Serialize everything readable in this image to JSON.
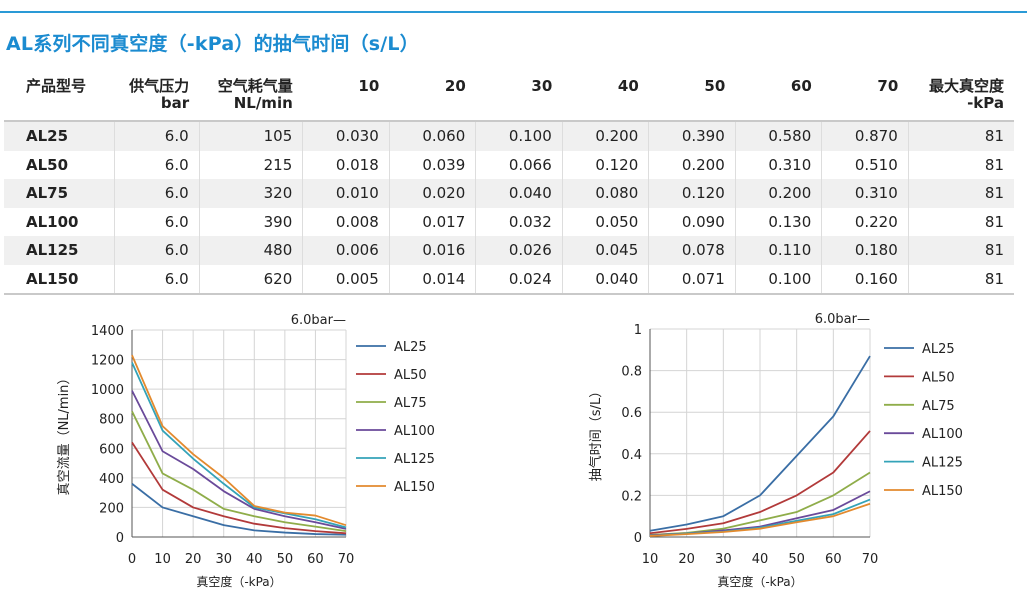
{
  "title": "AL系列不同真空度（-kPa）的抽气时间（s/L）",
  "table": {
    "header": [
      [
        "产品型号"
      ],
      [
        "供气压力",
        "bar"
      ],
      [
        "空气耗气量",
        "NL/min"
      ],
      [
        "10"
      ],
      [
        "20"
      ],
      [
        "30"
      ],
      [
        "40"
      ],
      [
        "50"
      ],
      [
        "60"
      ],
      [
        "70"
      ],
      [
        "最大真空度",
        "-kPa"
      ]
    ],
    "rows": [
      [
        "AL25",
        "6.0",
        "105",
        "0.030",
        "0.060",
        "0.100",
        "0.200",
        "0.390",
        "0.580",
        "0.870",
        "81"
      ],
      [
        "AL50",
        "6.0",
        "215",
        "0.018",
        "0.039",
        "0.066",
        "0.120",
        "0.200",
        "0.310",
        "0.510",
        "81"
      ],
      [
        "AL75",
        "6.0",
        "320",
        "0.010",
        "0.020",
        "0.040",
        "0.080",
        "0.120",
        "0.200",
        "0.310",
        "81"
      ],
      [
        "AL100",
        "6.0",
        "390",
        "0.008",
        "0.017",
        "0.032",
        "0.050",
        "0.090",
        "0.130",
        "0.220",
        "81"
      ],
      [
        "AL125",
        "6.0",
        "480",
        "0.006",
        "0.016",
        "0.026",
        "0.045",
        "0.078",
        "0.110",
        "0.180",
        "81"
      ],
      [
        "AL150",
        "6.0",
        "620",
        "0.005",
        "0.014",
        "0.024",
        "0.040",
        "0.071",
        "0.100",
        "0.160",
        "81"
      ]
    ]
  },
  "chart_data": [
    {
      "type": "line",
      "note_label": "6.0bar—",
      "xlabel": "真空度（-kPa）",
      "ylabel": "真空流量（NL/min）",
      "x": [
        0,
        10,
        20,
        30,
        40,
        50,
        60,
        70
      ],
      "xlim": [
        0,
        70
      ],
      "ylim": [
        0,
        1400
      ],
      "yticks": [
        0,
        200,
        400,
        600,
        800,
        1000,
        1200,
        1400
      ],
      "grid": true,
      "legend_position": "right",
      "series": [
        {
          "name": "AL25",
          "color": "#3a6ea5",
          "values": [
            360,
            200,
            140,
            80,
            45,
            30,
            20,
            15
          ]
        },
        {
          "name": "AL50",
          "color": "#b23a3a",
          "values": [
            640,
            320,
            200,
            140,
            90,
            60,
            40,
            25
          ]
        },
        {
          "name": "AL75",
          "color": "#8fad4a",
          "values": [
            850,
            430,
            320,
            190,
            140,
            100,
            70,
            40
          ]
        },
        {
          "name": "AL100",
          "color": "#6a4a9a",
          "values": [
            990,
            580,
            460,
            310,
            190,
            140,
            100,
            55
          ]
        },
        {
          "name": "AL125",
          "color": "#34a3b8",
          "values": [
            1180,
            720,
            530,
            360,
            200,
            160,
            120,
            65
          ]
        },
        {
          "name": "AL150",
          "color": "#e38a2e",
          "values": [
            1230,
            750,
            560,
            400,
            210,
            165,
            145,
            80
          ]
        }
      ]
    },
    {
      "type": "line",
      "note_label": "6.0bar—",
      "xlabel": "真空度（-kPa）",
      "ylabel": "抽气时间（s/L）",
      "x": [
        10,
        20,
        30,
        40,
        50,
        60,
        70
      ],
      "xlim": [
        10,
        70
      ],
      "ylim": [
        0,
        1
      ],
      "yticks": [
        0,
        0.2,
        0.4,
        0.6,
        0.8,
        1
      ],
      "ytick_labels": [
        "0",
        "0.2",
        "0.4",
        "0.6",
        "0.8",
        "1"
      ],
      "grid": true,
      "legend_position": "right",
      "series": [
        {
          "name": "AL25",
          "color": "#3a6ea5",
          "values": [
            0.03,
            0.06,
            0.1,
            0.2,
            0.39,
            0.58,
            0.87
          ]
        },
        {
          "name": "AL50",
          "color": "#b23a3a",
          "values": [
            0.018,
            0.039,
            0.066,
            0.12,
            0.2,
            0.31,
            0.51
          ]
        },
        {
          "name": "AL75",
          "color": "#8fad4a",
          "values": [
            0.01,
            0.02,
            0.04,
            0.08,
            0.12,
            0.2,
            0.31
          ]
        },
        {
          "name": "AL100",
          "color": "#6a4a9a",
          "values": [
            0.008,
            0.017,
            0.032,
            0.05,
            0.09,
            0.13,
            0.22
          ]
        },
        {
          "name": "AL125",
          "color": "#34a3b8",
          "values": [
            0.006,
            0.016,
            0.026,
            0.045,
            0.078,
            0.11,
            0.18
          ]
        },
        {
          "name": "AL150",
          "color": "#e38a2e",
          "values": [
            0.005,
            0.014,
            0.024,
            0.04,
            0.071,
            0.1,
            0.16
          ]
        }
      ]
    }
  ]
}
